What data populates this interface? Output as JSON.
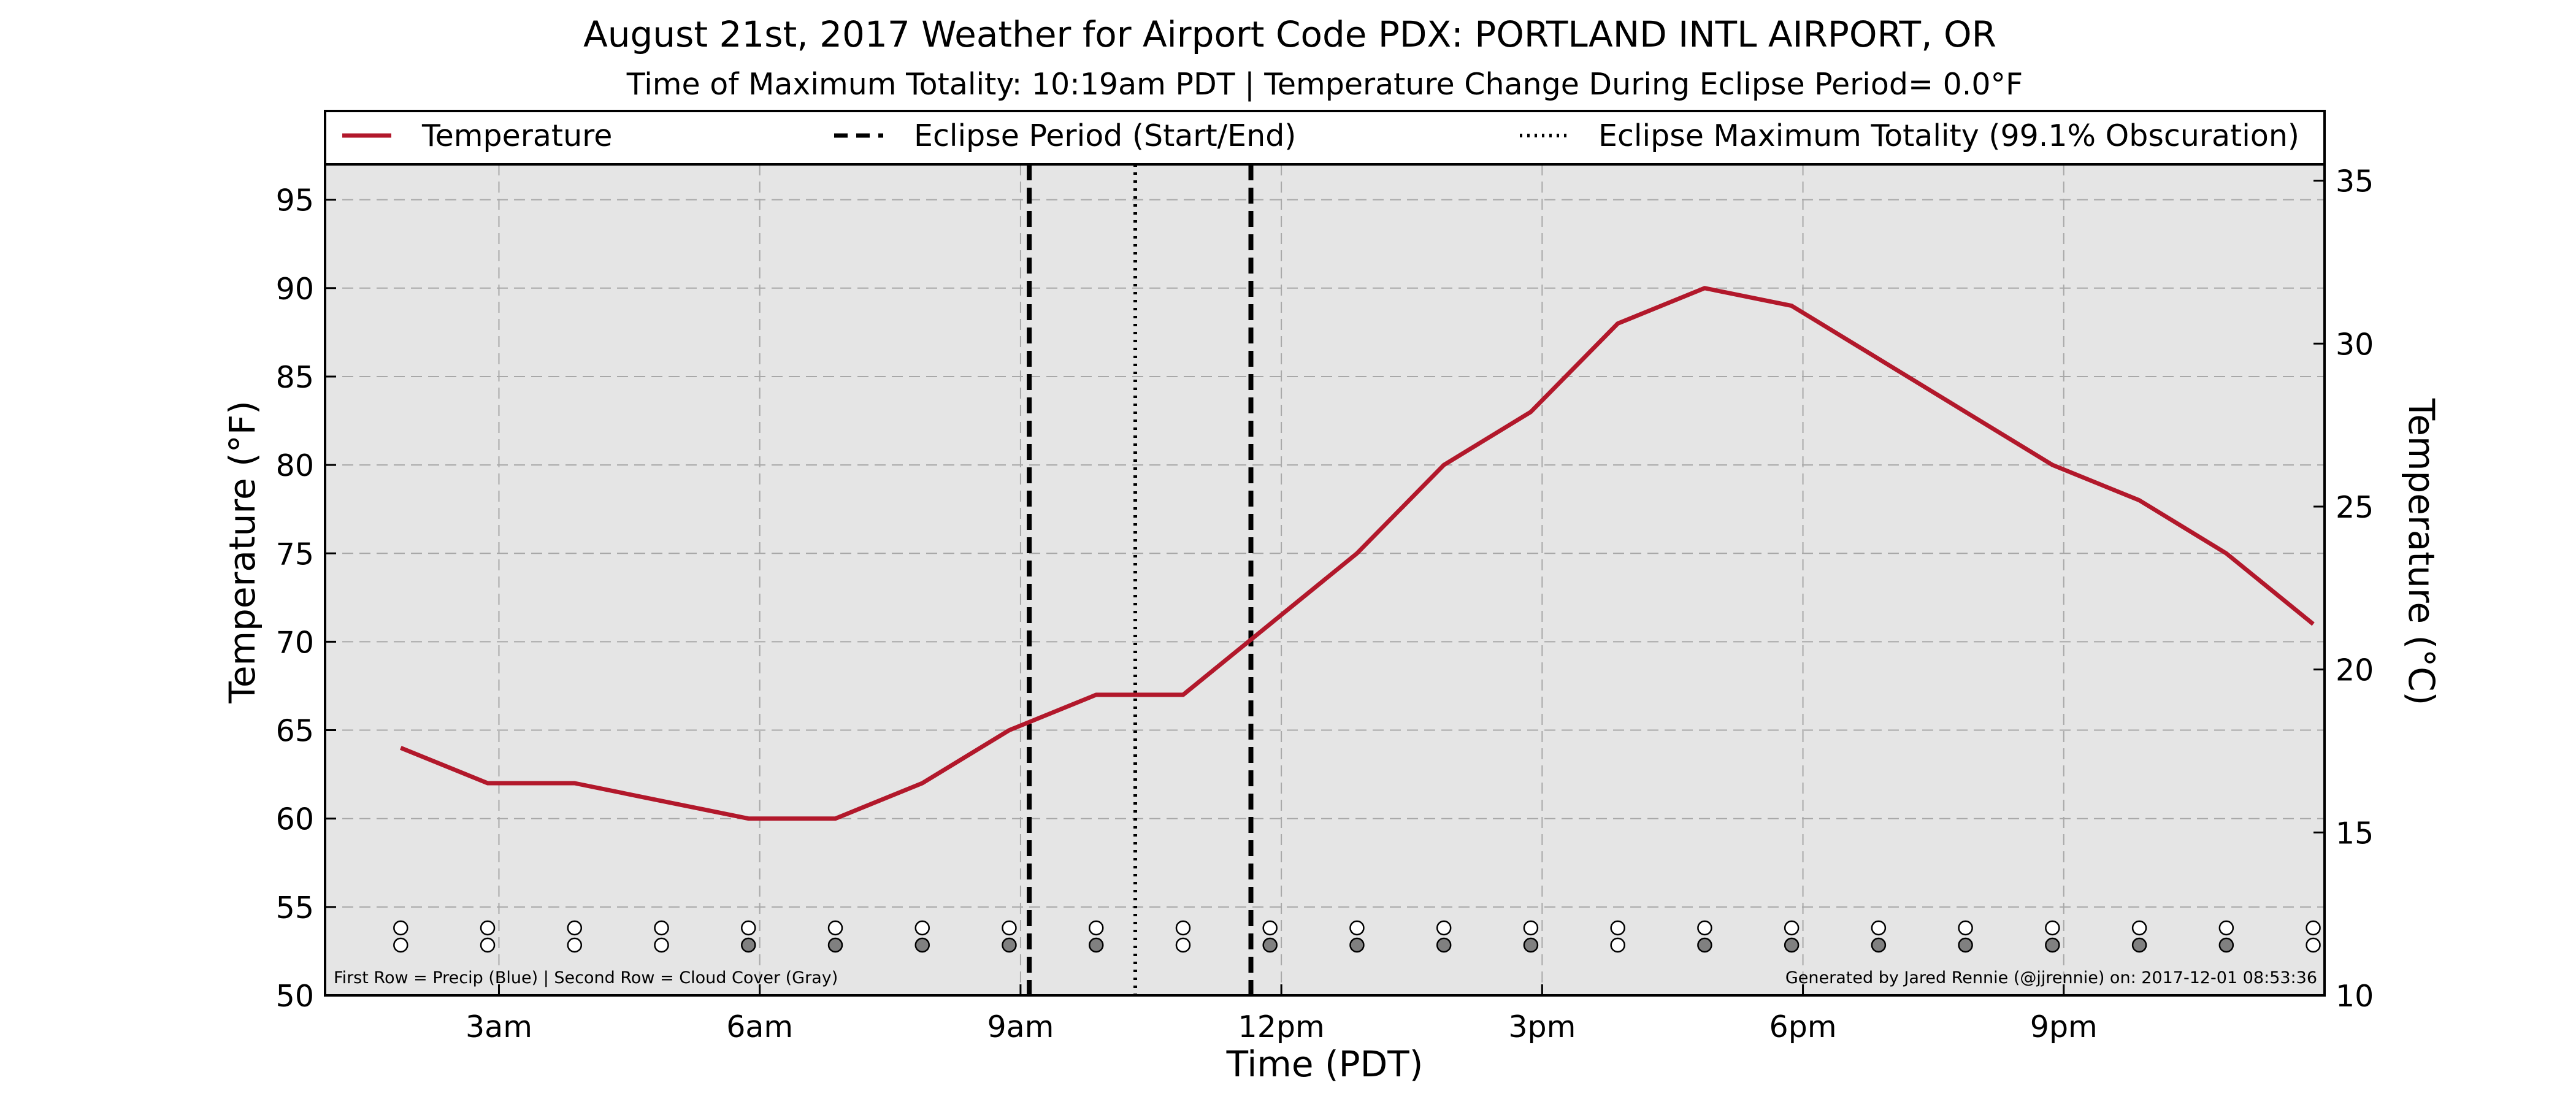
{
  "chart_data": {
    "type": "line",
    "title": "August 21st, 2017 Weather for Airport Code PDX: PORTLAND INTL AIRPORT, OR",
    "subtitle": "Time of Maximum Totality: 10:19am PDT | Temperature Change During Eclipse Period= 0.0°F",
    "xlabel": "Time (PDT)",
    "ylabel": "Temperature (°F)",
    "y2label": "Temperature (°C)",
    "xlim": [
      1.0,
      24.0
    ],
    "ylim": [
      50,
      97
    ],
    "y2lim": [
      10,
      35.5
    ],
    "x_ticks": [
      {
        "x": 3,
        "label": "3am"
      },
      {
        "x": 6,
        "label": "6am"
      },
      {
        "x": 9,
        "label": "9am"
      },
      {
        "x": 12,
        "label": "12pm"
      },
      {
        "x": 15,
        "label": "3pm"
      },
      {
        "x": 18,
        "label": "6pm"
      },
      {
        "x": 21,
        "label": "9pm"
      }
    ],
    "y_ticks": [
      50,
      55,
      60,
      65,
      70,
      75,
      80,
      85,
      90,
      95
    ],
    "y2_ticks": [
      10,
      15,
      20,
      25,
      30,
      35
    ],
    "grid": true,
    "legend_placement": "top, above plot area",
    "legend": [
      {
        "label": "Temperature",
        "style": "solid",
        "color": "#b2182b"
      },
      {
        "label": "Eclipse Period (Start/End)",
        "style": "dashed",
        "color": "#000000"
      },
      {
        "label": "Eclipse Maximum Totality (99.1% Obscuration)",
        "style": "dotted",
        "color": "#000000"
      }
    ],
    "series": [
      {
        "name": "Temperature",
        "color": "#b2182b",
        "x": [
          1.87,
          2.87,
          3.87,
          4.87,
          5.87,
          6.87,
          7.87,
          8.87,
          9.87,
          10.87,
          11.87,
          12.87,
          13.87,
          14.87,
          15.87,
          16.87,
          17.87,
          18.87,
          19.87,
          20.87,
          21.87,
          22.87,
          23.87
        ],
        "y": [
          64,
          62,
          62,
          61,
          60,
          60,
          62,
          65,
          67,
          67,
          71,
          75,
          80,
          83,
          88,
          90,
          89,
          86,
          83,
          80,
          78,
          75,
          71
        ]
      }
    ],
    "eclipse_period": {
      "start": 9.1,
      "end": 11.65
    },
    "eclipse_max": 10.32,
    "precip_row": [
      0,
      0,
      0,
      0,
      0,
      0,
      0,
      0,
      0,
      0,
      0,
      0,
      0,
      0,
      0,
      0,
      0,
      0,
      0,
      0,
      0,
      0,
      0
    ],
    "cloud_row": [
      0,
      0,
      0,
      0,
      1,
      1,
      1,
      1,
      1,
      0,
      1,
      1,
      1,
      1,
      0,
      1,
      1,
      1,
      1,
      1,
      1,
      1,
      0
    ],
    "annotations": {
      "bottom_left": "First Row = Precip (Blue) | Second Row = Cloud Cover (Gray)",
      "bottom_right": "Generated by Jared Rennie (@jjrennie) on: 2017-12-01 08:53:36"
    },
    "colors": {
      "plot_bg": "#e5e5e5",
      "grid": "#a8a8a8",
      "cloud_fill": "#808080",
      "empty_fill": "#ffffff"
    }
  }
}
